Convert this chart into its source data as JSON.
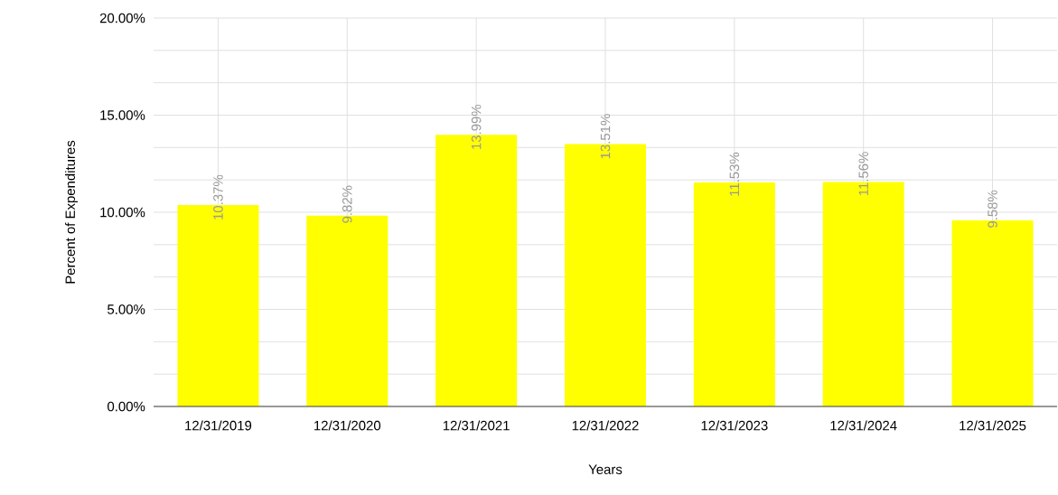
{
  "chart_data": {
    "type": "bar",
    "xlabel": "Years",
    "ylabel": "Percent of Expenditures",
    "categories": [
      "12/31/2019",
      "12/31/2020",
      "12/31/2021",
      "12/31/2022",
      "12/31/2023",
      "12/31/2024",
      "12/31/2025"
    ],
    "values": [
      10.37,
      9.82,
      13.99,
      13.51,
      11.53,
      11.56,
      9.58
    ],
    "value_labels": [
      "10.37%",
      "9.82%",
      "13.99%",
      "13.51%",
      "11.53%",
      "11.56%",
      "9.58%"
    ],
    "color": "#ffff00",
    "ylim": [
      0,
      20
    ],
    "yticks": [
      {
        "value": 0,
        "label": "0.00%"
      },
      {
        "value": 5,
        "label": "5.00%"
      },
      {
        "value": 10,
        "label": "10.00%"
      },
      {
        "value": 15,
        "label": "15.00%"
      },
      {
        "value": 20,
        "label": "20.00%"
      }
    ],
    "grid": true
  }
}
